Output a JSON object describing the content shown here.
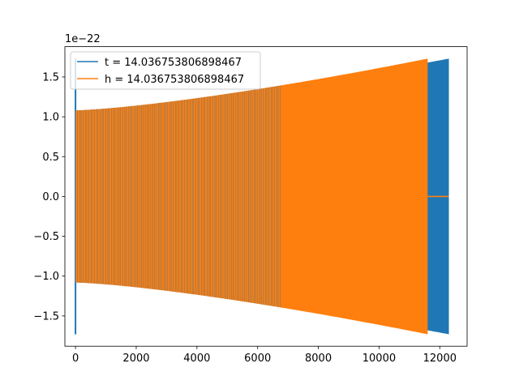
{
  "chart_data": {
    "type": "line",
    "title": "",
    "xlabel": "",
    "ylabel": "",
    "y_offset_label": "1e−22",
    "xlim": [
      -350,
      12900
    ],
    "ylim": [
      -1.88,
      1.88
    ],
    "xticks": [
      0,
      2000,
      4000,
      6000,
      8000,
      10000,
      12000
    ],
    "xtick_labels": [
      "0",
      "2000",
      "4000",
      "6000",
      "8000",
      "10000",
      "12000"
    ],
    "yticks": [
      -1.5,
      -1.0,
      -0.5,
      0.0,
      0.5,
      1.0,
      1.5
    ],
    "ytick_labels": [
      "−1.5",
      "−1.0",
      "−0.5",
      "0.0",
      "0.5",
      "1.0",
      "1.5"
    ],
    "grid": false,
    "legend_position": "upper-left",
    "series": [
      {
        "name": "t = 14.036753806898467",
        "color": "#1f77b4",
        "x_range": [
          0,
          12300
        ],
        "envelope_x": [
          0,
          12300
        ],
        "envelope_amp": [
          1.08,
          1.73
        ],
        "initial_spike_amp": 1.73,
        "note_color": "blue"
      },
      {
        "name": "h = 14.036753806898467",
        "color": "#ff7f0e",
        "x_range": [
          0,
          11600
        ],
        "envelope_x": [
          0,
          11600
        ],
        "envelope_amp": [
          1.08,
          1.73
        ],
        "zero_tail_x": [
          11600,
          12300
        ]
      }
    ]
  }
}
